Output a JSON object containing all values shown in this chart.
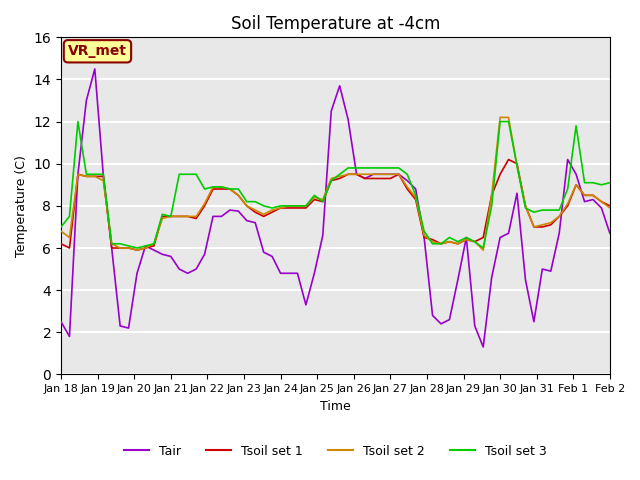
{
  "title": "Soil Temperature at -4cm",
  "xlabel": "Time",
  "ylabel": "Temperature (C)",
  "ylim": [
    0,
    16
  ],
  "annotation_text": "VR_met",
  "annotation_color": "#8B0000",
  "annotation_bg": "#FFFF99",
  "bg_color": "#E8E8E8",
  "grid_color": "white",
  "x_tick_labels": [
    "Jan 18",
    "Jan 19",
    "Jan 20",
    "Jan 21",
    "Jan 22",
    "Jan 23",
    "Jan 24",
    "Jan 25",
    "Jan 26",
    "Jan 27",
    "Jan 28",
    "Jan 29",
    "Jan 30",
    "Jan 31",
    "Feb 1",
    "Feb 2"
  ],
  "line_colors": {
    "Tair": "#9900CC",
    "Tsoil_set1": "#CC0000",
    "Tsoil_set2": "#CC8800",
    "Tsoil_set3": "#00CC00"
  },
  "legend_labels": [
    "Tair",
    "Tsoil set 1",
    "Tsoil set 2",
    "Tsoil set 3"
  ],
  "Tair": [
    2.5,
    1.8,
    9.5,
    13.0,
    14.5,
    9.5,
    6.0,
    2.3,
    2.2,
    4.8,
    6.1,
    5.9,
    5.7,
    5.6,
    5.0,
    4.8,
    5.0,
    5.7,
    7.5,
    7.5,
    7.8,
    7.75,
    7.3,
    7.2,
    5.8,
    5.6,
    4.8,
    4.8,
    4.8,
    3.3,
    4.8,
    6.6,
    12.5,
    13.7,
    12.1,
    9.5,
    9.3,
    9.5,
    9.5,
    9.5,
    9.5,
    9.2,
    8.8,
    6.5,
    2.8,
    2.4,
    2.6,
    4.5,
    6.5,
    2.3,
    1.3,
    4.6,
    6.5,
    6.7,
    8.6,
    4.5,
    2.5,
    5.0,
    4.9,
    6.7,
    10.2,
    9.5,
    8.2,
    8.3,
    7.9,
    6.7
  ],
  "Tsoil_set1": [
    6.2,
    6.0,
    9.5,
    9.4,
    9.4,
    9.4,
    6.0,
    6.0,
    6.0,
    5.9,
    6.0,
    6.1,
    7.5,
    7.5,
    7.5,
    7.5,
    7.4,
    8.0,
    8.8,
    8.8,
    8.8,
    8.5,
    8.0,
    7.7,
    7.5,
    7.7,
    7.9,
    7.9,
    7.9,
    7.9,
    8.3,
    8.2,
    9.2,
    9.3,
    9.5,
    9.5,
    9.3,
    9.3,
    9.3,
    9.3,
    9.5,
    8.8,
    8.3,
    6.5,
    6.4,
    6.2,
    6.3,
    6.2,
    6.4,
    6.3,
    6.5,
    8.5,
    9.5,
    10.2,
    10.0,
    8.0,
    7.0,
    7.0,
    7.1,
    7.5,
    8.0,
    9.0,
    8.5,
    8.5,
    8.2,
    8.0
  ],
  "Tsoil_set2": [
    6.8,
    6.5,
    9.5,
    9.4,
    9.4,
    9.2,
    6.2,
    6.0,
    6.0,
    5.9,
    6.0,
    6.2,
    7.4,
    7.5,
    7.5,
    7.5,
    7.5,
    8.1,
    8.9,
    8.9,
    8.8,
    8.5,
    8.0,
    7.8,
    7.6,
    7.8,
    7.9,
    8.0,
    8.0,
    8.0,
    8.4,
    8.3,
    9.3,
    9.4,
    9.5,
    9.5,
    9.5,
    9.5,
    9.5,
    9.5,
    9.5,
    8.9,
    8.4,
    6.6,
    6.3,
    6.2,
    6.3,
    6.2,
    6.4,
    6.3,
    5.9,
    8.5,
    12.2,
    12.2,
    9.9,
    8.0,
    7.0,
    7.1,
    7.2,
    7.5,
    8.1,
    9.0,
    8.5,
    8.5,
    8.2,
    7.9
  ],
  "Tsoil_set3": [
    7.0,
    7.5,
    12.0,
    9.5,
    9.5,
    9.5,
    6.2,
    6.2,
    6.1,
    6.0,
    6.1,
    6.2,
    7.6,
    7.5,
    9.5,
    9.5,
    9.5,
    8.8,
    8.9,
    8.9,
    8.8,
    8.8,
    8.2,
    8.2,
    8.0,
    7.9,
    8.0,
    8.0,
    8.0,
    8.0,
    8.5,
    8.2,
    9.2,
    9.5,
    9.8,
    9.8,
    9.8,
    9.8,
    9.8,
    9.8,
    9.8,
    9.5,
    8.5,
    6.8,
    6.2,
    6.2,
    6.5,
    6.3,
    6.5,
    6.3,
    6.0,
    8.0,
    12.0,
    12.0,
    9.9,
    7.9,
    7.7,
    7.8,
    7.8,
    7.8,
    8.8,
    11.8,
    9.1,
    9.1,
    9.0,
    9.1
  ]
}
